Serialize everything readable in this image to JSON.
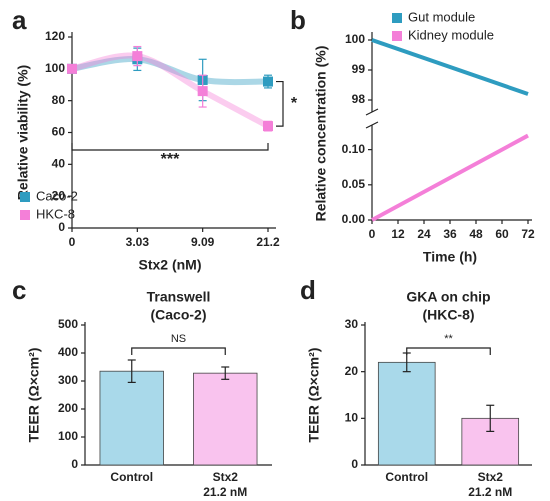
{
  "chart_data": [
    {
      "type": "line",
      "panel": "a",
      "categories": [
        "0",
        "3.03",
        "9.09",
        "21.2"
      ],
      "x_label": "Stx2 (nM)",
      "y_label": "Relative viability (%)",
      "ylim": [
        0,
        120
      ],
      "yticks": [
        0,
        20,
        40,
        60,
        80,
        100,
        120
      ],
      "smooth": true,
      "legend": "lower left",
      "series": [
        {
          "name": "Caco-2",
          "color": "#2e9cc0",
          "values": [
            100,
            106,
            93,
            92
          ],
          "errors": [
            0,
            7,
            13,
            4
          ]
        },
        {
          "name": "HKC-8",
          "color": "#f47fd8",
          "values": [
            100,
            108,
            86,
            64
          ],
          "errors": [
            0,
            6,
            10,
            3
          ]
        }
      ],
      "annotations": [
        "***",
        "*"
      ]
    },
    {
      "type": "broken_line",
      "panel": "b",
      "x_label": "Time (h)",
      "y_label": "Relative concentration (%)",
      "xlim": [
        0,
        72
      ],
      "xticks": [
        0,
        12,
        24,
        36,
        48,
        60,
        72
      ],
      "ylim_upper": [
        97.6,
        100.1
      ],
      "yticks_upper": [
        98,
        99,
        100
      ],
      "ylim_lower": [
        0,
        0.135
      ],
      "yticks_lower": [
        {
          "value": 0,
          "label": "0.00"
        },
        0.05,
        {
          "value": 0.1,
          "label": "0.10"
        }
      ],
      "legend": "upper right",
      "series": [
        {
          "name": "Gut module",
          "color": "#2e9cc0",
          "segment": "upper",
          "x": [
            0,
            72
          ],
          "values": [
            100,
            98.2
          ]
        },
        {
          "name": "Kidney module",
          "color": "#f47fd8",
          "segment": "lower",
          "x": [
            0,
            72
          ],
          "values": [
            0,
            0.12
          ]
        }
      ]
    },
    {
      "type": "bar",
      "panel": "c",
      "title": "Transwell",
      "subtitle": "(Caco-2)",
      "y_label": "TEER (Ω×cm²)",
      "categories": [
        [
          "Control"
        ],
        [
          "Stx2",
          "21.2 nM"
        ]
      ],
      "values": [
        335,
        328
      ],
      "errors": [
        40,
        22
      ],
      "colors": [
        "#a9d9ea",
        "#f9c3ee"
      ],
      "ylim": [
        0,
        500
      ],
      "yticks": [
        0,
        100,
        200,
        300,
        400,
        500
      ],
      "annotations": [
        "NS"
      ]
    },
    {
      "type": "bar",
      "panel": "d",
      "title": "GKA on chip",
      "subtitle": "(HKC-8)",
      "y_label": "TEER (Ω×cm²)",
      "categories": [
        [
          "Control"
        ],
        [
          "Stx2",
          "21.2 nM"
        ]
      ],
      "values": [
        22,
        10
      ],
      "errors": [
        2,
        2.8
      ],
      "colors": [
        "#a9d9ea",
        "#f9c3ee"
      ],
      "ylim": [
        0,
        30
      ],
      "yticks": [
        0,
        10,
        20,
        30
      ],
      "annotations": [
        "**"
      ]
    }
  ]
}
